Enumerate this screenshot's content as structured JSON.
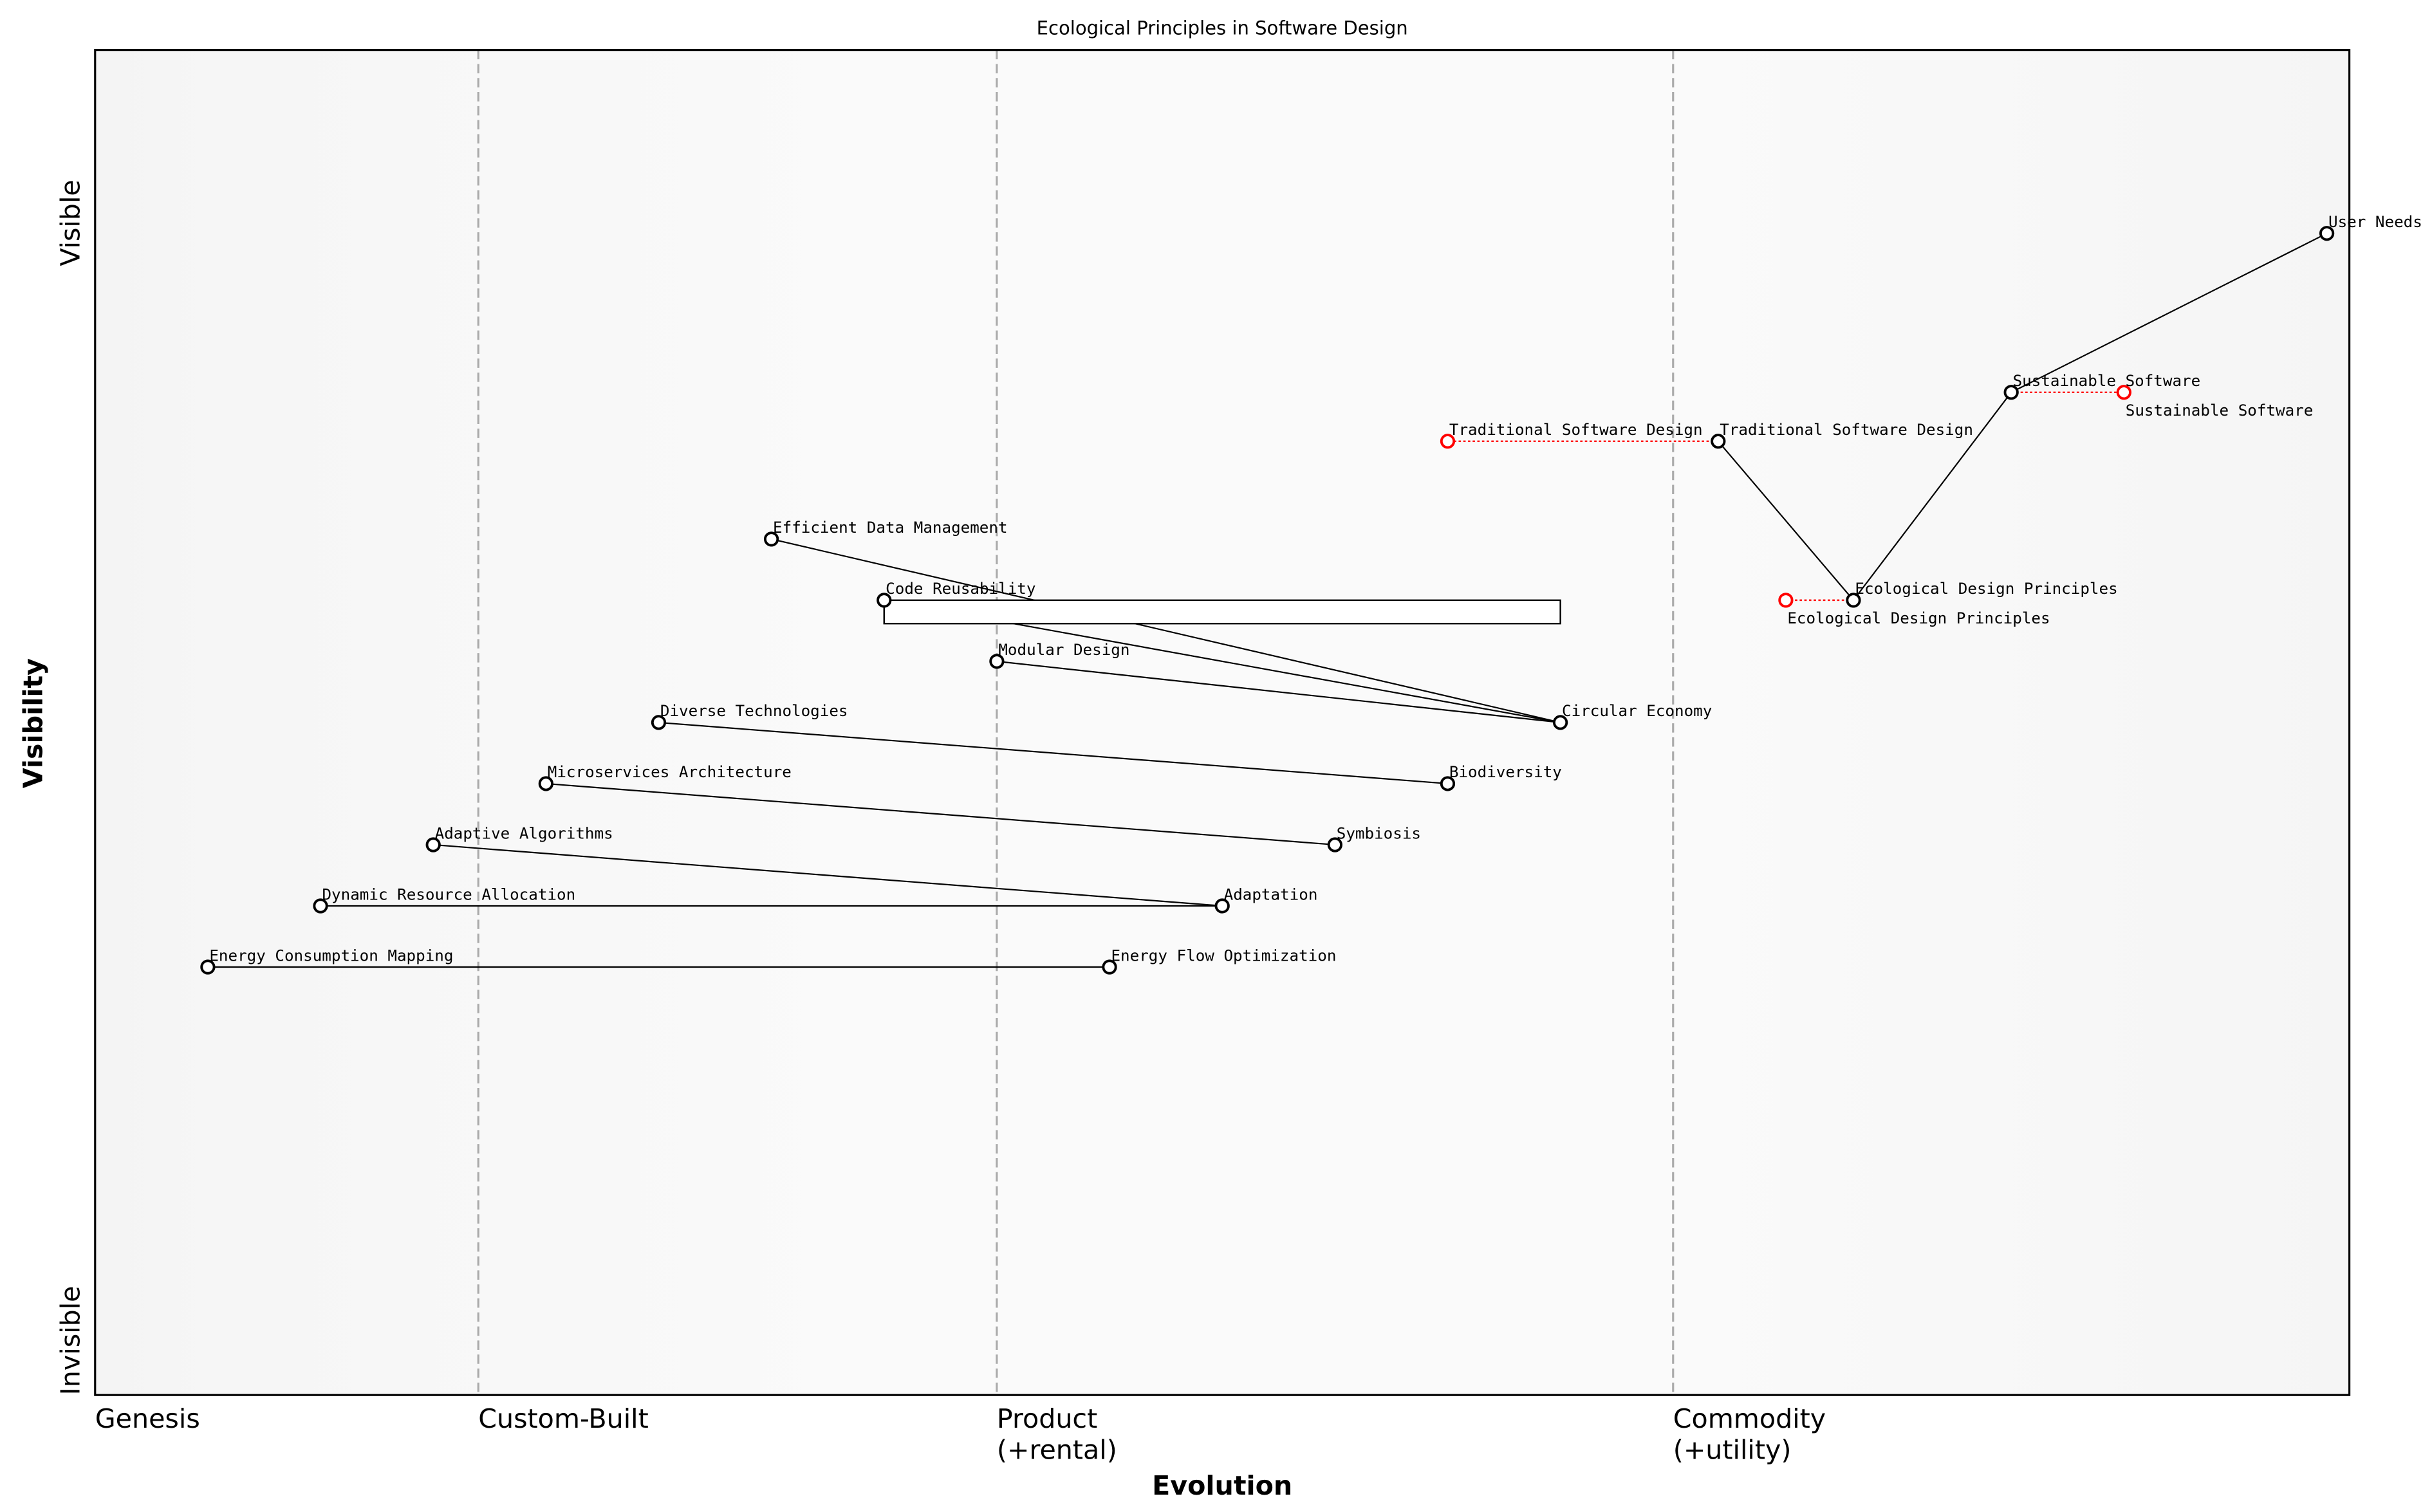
{
  "chart_data": {
    "type": "wardley-map",
    "title": "Ecological Principles in Software Design",
    "xlabel": "Evolution",
    "ylabel": "Visibility",
    "xlim": [
      0,
      1
    ],
    "ylim": [
      -0.05,
      1.05
    ],
    "y_ticks": {
      "top": "Visible",
      "bottom": "Invisible"
    },
    "stages": [
      {
        "label": "Genesis",
        "x": 0.0
      },
      {
        "label": "Custom-Built",
        "x": 0.17
      },
      {
        "label": "Product\n(+rental)",
        "x": 0.4
      },
      {
        "label": "Commodity\n(+utility)",
        "x": 0.7
      }
    ],
    "stage_lines": [
      0.17,
      0.4,
      0.7
    ],
    "components": [
      {
        "name": "User Needs",
        "x": 0.99,
        "y": 0.9
      },
      {
        "name": "Sustainable Software",
        "x": 0.85,
        "y": 0.77
      },
      {
        "name": "Traditional Software Design",
        "x": 0.72,
        "y": 0.73
      },
      {
        "name": "Ecological Design Principles",
        "x": 0.78,
        "y": 0.6
      },
      {
        "name": "Efficient Data Management",
        "x": 0.3,
        "y": 0.65
      },
      {
        "name": "Code Reusability",
        "x": 0.35,
        "y": 0.6
      },
      {
        "name": "Modular Design",
        "x": 0.4,
        "y": 0.55
      },
      {
        "name": "Circular Economy",
        "x": 0.65,
        "y": 0.5
      },
      {
        "name": "Diverse Technologies",
        "x": 0.25,
        "y": 0.5
      },
      {
        "name": "Biodiversity",
        "x": 0.6,
        "y": 0.45
      },
      {
        "name": "Microservices Architecture",
        "x": 0.2,
        "y": 0.45
      },
      {
        "name": "Symbiosis",
        "x": 0.55,
        "y": 0.4
      },
      {
        "name": "Adaptive Algorithms",
        "x": 0.15,
        "y": 0.4
      },
      {
        "name": "Adaptation",
        "x": 0.5,
        "y": 0.35
      },
      {
        "name": "Dynamic Resource Allocation",
        "x": 0.1,
        "y": 0.35
      },
      {
        "name": "Energy Flow Optimization",
        "x": 0.45,
        "y": 0.3
      },
      {
        "name": "Energy Consumption Mapping",
        "x": 0.05,
        "y": 0.3
      }
    ],
    "evolutions": [
      {
        "name": "Traditional Software Design",
        "to_x": 0.6
      },
      {
        "name": "Sustainable Software",
        "to_x": 0.9
      },
      {
        "name": "Ecological Design Principles",
        "to_x": 0.75
      }
    ],
    "links": [
      [
        "User Needs",
        "Sustainable Software"
      ],
      [
        "Sustainable Software",
        "Ecological Design Principles"
      ],
      [
        "Traditional Software Design",
        "Ecological Design Principles"
      ],
      [
        "Efficient Data Management",
        "Circular Economy"
      ],
      [
        "Code Reusability",
        "Circular Economy"
      ],
      [
        "Modular Design",
        "Circular Economy"
      ],
      [
        "Diverse Technologies",
        "Biodiversity"
      ],
      [
        "Microservices Architecture",
        "Symbiosis"
      ],
      [
        "Adaptive Algorithms",
        "Adaptation"
      ],
      [
        "Dynamic Resource Allocation",
        "Adaptation"
      ],
      [
        "Energy Consumption Mapping",
        "Energy Flow Optimization"
      ]
    ],
    "pipelines": [
      {
        "name": "Code Reusability",
        "x_start": 0.35,
        "x_end": 0.65
      }
    ],
    "colors": {
      "component": "#000000",
      "evolved": "#ff0000",
      "stage_line": "#aaaaaa",
      "background_light": "#fafafa",
      "background_dark": "#f4f4f4"
    }
  }
}
